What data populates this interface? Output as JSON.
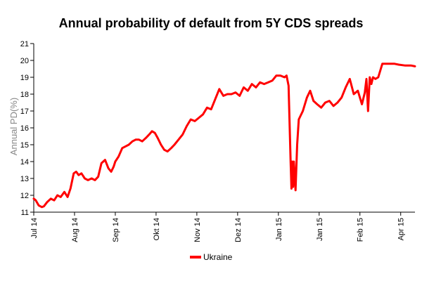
{
  "chart_data": {
    "type": "line",
    "title": "Annual probability of default from 5Y CDS spreads",
    "xlabel": "",
    "ylabel": "Annual PD(%)",
    "ylim": [
      11,
      21
    ],
    "y_ticks": [
      11,
      12,
      13,
      14,
      15,
      16,
      17,
      18,
      19,
      20,
      21
    ],
    "x_ticks": [
      "Jul 14",
      "Aug 14",
      "Sep 14",
      "Okt 14",
      "Nov 14",
      "Dez 14",
      "Jan 15",
      "Jan 15",
      "Feb 15",
      "Apr 15"
    ],
    "x_tick_positions": [
      0,
      1,
      2,
      3,
      4,
      5,
      6,
      7,
      8,
      9
    ],
    "x_range": [
      0,
      9.35
    ],
    "grid": false,
    "legend_position": "bottom-center",
    "series": [
      {
        "name": "Ukraine",
        "color": "#ff0000",
        "x": [
          0.0,
          0.05,
          0.12,
          0.2,
          0.25,
          0.33,
          0.42,
          0.5,
          0.58,
          0.66,
          0.75,
          0.83,
          0.9,
          0.98,
          1.04,
          1.1,
          1.17,
          1.25,
          1.33,
          1.42,
          1.5,
          1.58,
          1.66,
          1.75,
          1.83,
          1.9,
          1.96,
          2.0,
          2.08,
          2.17,
          2.25,
          2.33,
          2.42,
          2.5,
          2.58,
          2.66,
          2.75,
          2.83,
          2.9,
          2.97,
          3.04,
          3.12,
          3.2,
          3.28,
          3.37,
          3.45,
          3.55,
          3.65,
          3.75,
          3.85,
          3.95,
          4.05,
          4.15,
          4.25,
          4.35,
          4.45,
          4.55,
          4.65,
          4.75,
          4.85,
          4.95,
          5.05,
          5.15,
          5.25,
          5.35,
          5.45,
          5.55,
          5.65,
          5.75,
          5.85,
          5.95,
          6.05,
          6.15,
          6.2,
          6.25,
          6.3,
          6.32,
          6.34,
          6.36,
          6.38,
          6.42,
          6.46,
          6.5,
          6.6,
          6.7,
          6.78,
          6.86,
          6.95,
          7.05,
          7.15,
          7.25,
          7.35,
          7.45,
          7.55,
          7.65,
          7.75,
          7.85,
          7.95,
          8.05,
          8.12,
          8.16,
          8.2,
          8.24,
          8.28,
          8.32,
          8.38,
          8.45,
          8.55,
          8.65,
          8.75,
          8.85,
          8.95,
          9.1,
          9.25,
          9.35
        ],
        "y": [
          11.8,
          11.7,
          11.4,
          11.3,
          11.35,
          11.6,
          11.8,
          11.7,
          12.0,
          11.9,
          12.2,
          11.9,
          12.4,
          13.3,
          13.4,
          13.2,
          13.3,
          13.0,
          12.9,
          13.0,
          12.9,
          13.1,
          13.9,
          14.1,
          13.6,
          13.4,
          13.7,
          14.0,
          14.3,
          14.8,
          14.9,
          15.0,
          15.2,
          15.3,
          15.3,
          15.2,
          15.4,
          15.6,
          15.8,
          15.7,
          15.4,
          15.0,
          14.7,
          14.6,
          14.8,
          15.0,
          15.3,
          15.6,
          16.1,
          16.5,
          16.4,
          16.6,
          16.8,
          17.2,
          17.1,
          17.7,
          18.3,
          17.9,
          18.0,
          18.0,
          18.1,
          17.9,
          18.4,
          18.2,
          18.6,
          18.4,
          18.7,
          18.6,
          18.7,
          18.8,
          19.1,
          19.1,
          19.0,
          19.1,
          18.5,
          14.0,
          12.4,
          14.0,
          12.5,
          14.0,
          12.3,
          15.0,
          16.5,
          17.0,
          17.8,
          18.2,
          17.6,
          17.4,
          17.2,
          17.5,
          17.6,
          17.3,
          17.5,
          17.8,
          18.4,
          18.9,
          18.0,
          18.2,
          17.4,
          18.1,
          18.9,
          17.0,
          19.0,
          18.6,
          19.0,
          18.9,
          19.0,
          19.8,
          19.8,
          19.8,
          19.8,
          19.75,
          19.7,
          19.7,
          19.65
        ]
      }
    ]
  }
}
